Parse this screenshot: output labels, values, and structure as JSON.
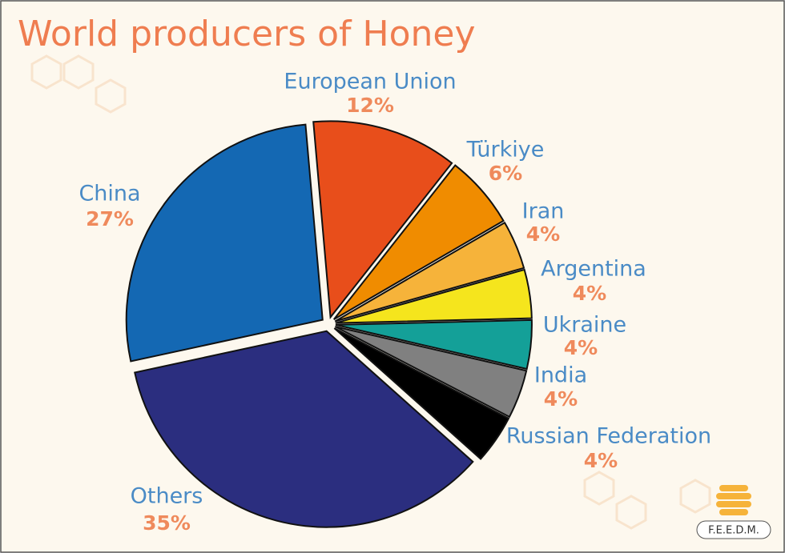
{
  "chart_data": {
    "type": "pie",
    "title": "World producers of Honey",
    "categories": [
      "European Union",
      "Türkiye",
      "Iran",
      "Argentina",
      "Ukraine",
      "India",
      "Russian Federation",
      "Others",
      "China"
    ],
    "values": [
      12,
      6,
      4,
      4,
      4,
      4,
      4,
      35,
      27
    ],
    "value_labels": [
      "12%",
      "6%",
      "4%",
      "4%",
      "4%",
      "4%",
      "4%",
      "35%",
      "27%"
    ],
    "colors": [
      "#e84e1b",
      "#f08c00",
      "#f6b33a",
      "#f5e51d",
      "#14a098",
      "#808080",
      "#000000",
      "#2b2e7f",
      "#1468b3"
    ]
  },
  "logo": "F.E.E.D.M."
}
